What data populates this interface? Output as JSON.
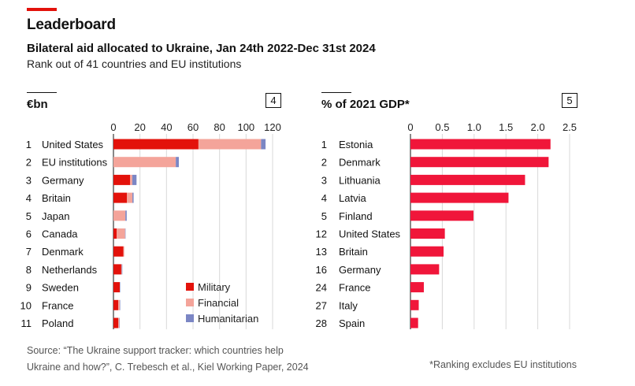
{
  "header": {
    "title": "Leaderboard",
    "subtitle": "Bilateral aid allocated to Ukraine, Jan 24th 2022-Dec 31st 2024",
    "description": "Rank out of 41 countries and EU institutions"
  },
  "colors": {
    "accent": "#e3120b",
    "military": "#e3120b",
    "financial": "#f4a49a",
    "humanitarian": "#7b86c4",
    "gdp_bar": "#f0163a"
  },
  "chart_data": [
    {
      "type": "bar",
      "orientation": "horizontal",
      "stacked": true,
      "title": "€bn",
      "panel_number": "4",
      "ranks": [
        "1",
        "2",
        "3",
        "4",
        "5",
        "6",
        "7",
        "8",
        "9",
        "10",
        "11"
      ],
      "categories": [
        "United States",
        "EU institutions",
        "Germany",
        "Britain",
        "Japan",
        "Canada",
        "Denmark",
        "Netherlands",
        "Sweden",
        "France",
        "Poland"
      ],
      "series": [
        {
          "name": "Military",
          "values": [
            64.1,
            0,
            12.6,
            10.1,
            0,
            2.4,
            7.5,
            5.9,
            4.8,
            3.6,
            3.6
          ]
        },
        {
          "name": "Financial",
          "values": [
            47.2,
            47.0,
            1.6,
            4.2,
            9.0,
            6.4,
            0.6,
            0.4,
            0,
            1.2,
            0.8
          ]
        },
        {
          "name": "Humanitarian",
          "values": [
            3.4,
            2.3,
            3.2,
            0.9,
            1.0,
            0.3,
            0,
            0.4,
            0.3,
            0.2,
            0.3
          ]
        }
      ],
      "xticks": [
        "0",
        "20",
        "40",
        "60",
        "80",
        "100",
        "120"
      ],
      "xlim": [
        0,
        120
      ],
      "legend_position": "bottom-right"
    },
    {
      "type": "bar",
      "orientation": "horizontal",
      "title": "% of 2021 GDP*",
      "panel_number": "5",
      "ranks": [
        "1",
        "2",
        "3",
        "4",
        "5",
        "12",
        "13",
        "16",
        "24",
        "27",
        "28"
      ],
      "categories": [
        "Estonia",
        "Denmark",
        "Lithuania",
        "Latvia",
        "Finland",
        "United States",
        "Britain",
        "Germany",
        "France",
        "Italy",
        "Spain"
      ],
      "values": [
        2.2,
        2.17,
        1.8,
        1.54,
        0.99,
        0.54,
        0.52,
        0.45,
        0.21,
        0.13,
        0.12
      ],
      "xticks": [
        "0",
        "0.5",
        "1.0",
        "1.5",
        "2.0",
        "2.5"
      ],
      "xlim": [
        0,
        2.5
      ]
    }
  ],
  "footer": {
    "source_line1": "Source: “The Ukraine support tracker: which countries help",
    "source_line2": "Ukraine and how?”, C. Trebesch et al., Kiel Working Paper, 2024",
    "note": "*Ranking excludes EU institutions"
  }
}
